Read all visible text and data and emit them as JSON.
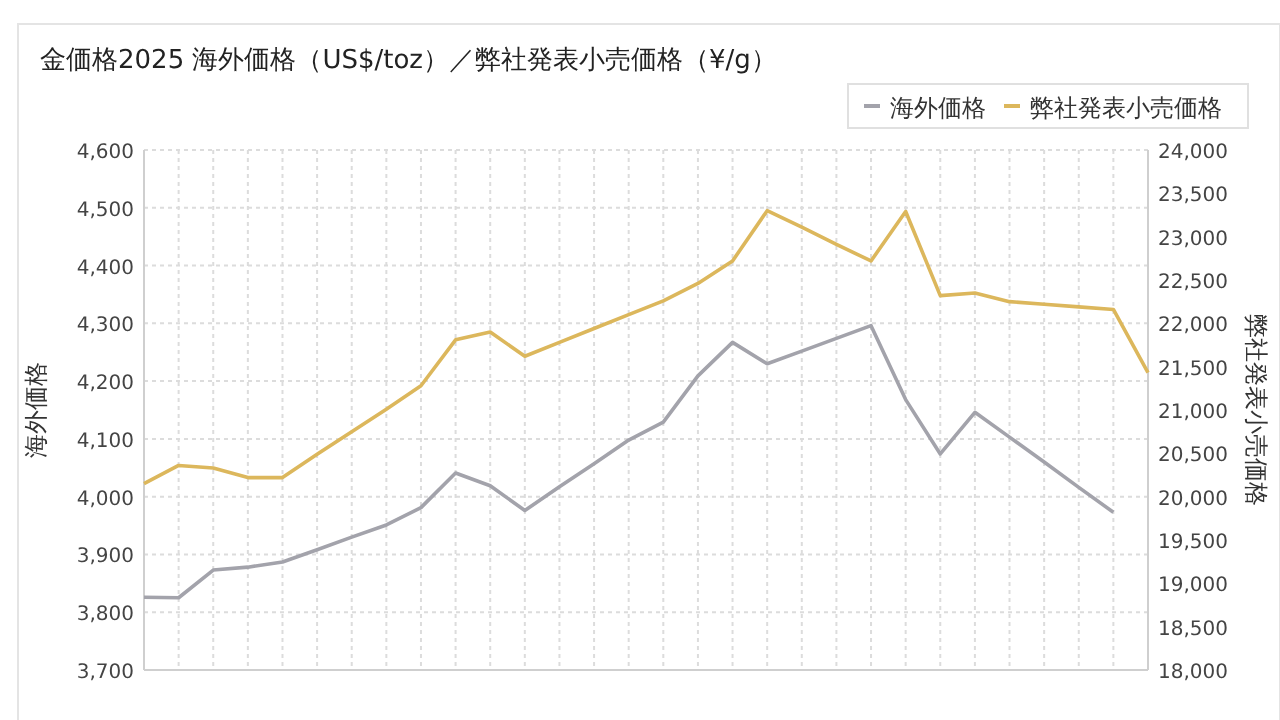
{
  "chart_data": {
    "type": "line",
    "title": "金価格2025 海外価格（US$/toz）／弊社発表小売価格（¥/g）",
    "ylabel": "海外価格",
    "y2label": "弊社発表小売価格",
    "categories": [
      null,
      null,
      null,
      null,
      null,
      null,
      null,
      null,
      null,
      null,
      null,
      null,
      null,
      null,
      null,
      null,
      null,
      null,
      null,
      null,
      null,
      null,
      null,
      null,
      null,
      null,
      null,
      null,
      null,
      null
    ],
    "series": [
      {
        "name": "海外価格",
        "color": "#a3a3ab",
        "values": [
          3826,
          3825,
          3873,
          3878,
          3887,
          3908,
          3930,
          3951,
          3981,
          4041,
          4019,
          3976,
          4017,
          4057,
          4098,
          4129,
          4209,
          4267,
          4230,
          4252,
          4274,
          4296,
          4168,
          4074,
          4146,
          4103,
          4060,
          4016,
          3973,
          null
        ]
      },
      {
        "name": "弊社発表小売価格",
        "color": "#dcb75c",
        "axis": "y2",
        "values": [
          20150,
          20360,
          20330,
          20220,
          20220,
          20490,
          20750,
          21010,
          21280,
          21810,
          21900,
          21620,
          21780,
          21940,
          22100,
          22260,
          22460,
          22720,
          23300,
          23110,
          22910,
          22720,
          23290,
          22320,
          22350,
          22250,
          22220,
          22190,
          22160,
          21430
        ]
      }
    ],
    "ylim": [
      3700,
      4600
    ],
    "yticks": [
      {
        "value": 3700,
        "label": "3,700"
      },
      {
        "value": 3800,
        "label": "3,800"
      },
      {
        "value": 3900,
        "label": "3,900"
      },
      {
        "value": 4000,
        "label": "4,000"
      },
      {
        "value": 4100,
        "label": "4,100"
      },
      {
        "value": 4200,
        "label": "4,200"
      },
      {
        "value": 4300,
        "label": "4,300"
      },
      {
        "value": 4400,
        "label": "4,400"
      },
      {
        "value": 4500,
        "label": "4,500"
      },
      {
        "value": 4600,
        "label": "4,600"
      }
    ],
    "y2lim": [
      18000,
      24000
    ],
    "y2ticks": [
      {
        "value": 18000,
        "label": "18,000"
      },
      {
        "value": 18500,
        "label": "18,500"
      },
      {
        "value": 19000,
        "label": "19,000"
      },
      {
        "value": 19500,
        "label": "19,500"
      },
      {
        "value": 20000,
        "label": "20,000"
      },
      {
        "value": 20500,
        "label": "20,500"
      },
      {
        "value": 21000,
        "label": "21,000"
      },
      {
        "value": 21500,
        "label": "21,500"
      },
      {
        "value": 22000,
        "label": "22,000"
      },
      {
        "value": 22500,
        "label": "22,500"
      },
      {
        "value": 23000,
        "label": "23,000"
      },
      {
        "value": 23500,
        "label": "23,500"
      },
      {
        "value": 24000,
        "label": "24,000"
      }
    ],
    "grid": true,
    "legend": "top right",
    "marker": "none",
    "line_style": "solid"
  }
}
